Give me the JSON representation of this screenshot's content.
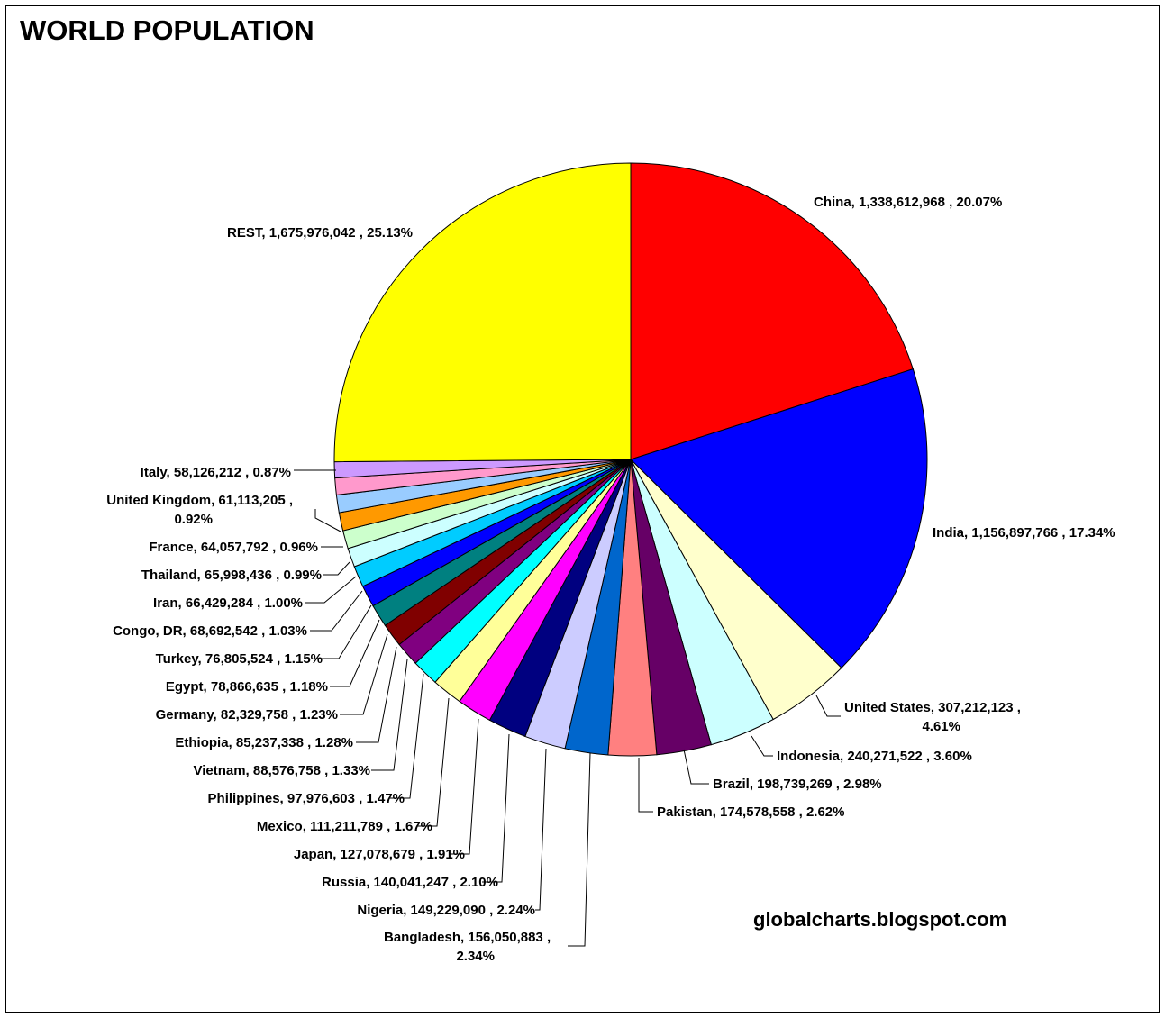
{
  "chart_data": {
    "type": "pie",
    "title": "WORLD POPULATION",
    "start_angle_deg": 0,
    "direction": "clockwise",
    "slices": [
      {
        "name": "China",
        "value": 1338612968,
        "percent": "20.07%",
        "color": "#ff0000"
      },
      {
        "name": "India",
        "value": 1156897766,
        "percent": "17.34%",
        "color": "#0000ff"
      },
      {
        "name": "United States",
        "value": 307212123,
        "percent": "4.61%",
        "color": "#ffffcc"
      },
      {
        "name": "Indonesia",
        "value": 240271522,
        "percent": "3.60%",
        "color": "#ccffff"
      },
      {
        "name": "Brazil",
        "value": 198739269,
        "percent": "2.98%",
        "color": "#660066"
      },
      {
        "name": "Pakistan",
        "value": 174578558,
        "percent": "2.62%",
        "color": "#ff8080"
      },
      {
        "name": "Bangladesh",
        "value": 156050883,
        "percent": "2.34%",
        "color": "#0066cc"
      },
      {
        "name": "Nigeria",
        "value": 149229090,
        "percent": "2.24%",
        "color": "#ccccff"
      },
      {
        "name": "Russia",
        "value": 140041247,
        "percent": "2.10%",
        "color": "#000080"
      },
      {
        "name": "Japan",
        "value": 127078679,
        "percent": "1.91%",
        "color": "#ff00ff"
      },
      {
        "name": "Mexico",
        "value": 111211789,
        "percent": "1.67%",
        "color": "#ffff99"
      },
      {
        "name": "Philippines",
        "value": 97976603,
        "percent": "1.47%",
        "color": "#00ffff"
      },
      {
        "name": "Vietnam",
        "value": 88576758,
        "percent": "1.33%",
        "color": "#800080"
      },
      {
        "name": "Ethiopia",
        "value": 85237338,
        "percent": "1.28%",
        "color": "#800000"
      },
      {
        "name": "Germany",
        "value": 82329758,
        "percent": "1.23%",
        "color": "#008080"
      },
      {
        "name": "Egypt",
        "value": 78866635,
        "percent": "1.18%",
        "color": "#0000ff"
      },
      {
        "name": "Turkey",
        "value": 76805524,
        "percent": "1.15%",
        "color": "#00ccff"
      },
      {
        "name": "Congo, DR",
        "value": 68692542,
        "percent": "1.03%",
        "color": "#ccffff"
      },
      {
        "name": "Iran",
        "value": 66429284,
        "percent": "1.00%",
        "color": "#ccffcc"
      },
      {
        "name": "Thailand",
        "value": 65998436,
        "percent": "0.99%",
        "color": "#ff9900"
      },
      {
        "name": "France",
        "value": 64057792,
        "percent": "0.96%",
        "color": "#99ccff"
      },
      {
        "name": "United Kingdom",
        "value": 61113205,
        "percent": "0.92%",
        "color": "#ff99cc"
      },
      {
        "name": "Italy",
        "value": 58126212,
        "percent": "0.87%",
        "color": "#cc99ff"
      },
      {
        "name": "REST",
        "value": 1675976042,
        "percent": "25.13%",
        "color": "#ffff00"
      }
    ],
    "labels": [
      {
        "lines": [
          "China,  1,338,612,968 , 20.07%"
        ]
      },
      {
        "lines": [
          "India,  1,156,897,766 , 17.34%"
        ]
      },
      {
        "lines": [
          "United States,  307,212,123 ,",
          "4.61%"
        ]
      },
      {
        "lines": [
          "Indonesia,  240,271,522 , 3.60%"
        ]
      },
      {
        "lines": [
          "Brazil,  198,739,269 , 2.98%"
        ]
      },
      {
        "lines": [
          "Pakistan,  174,578,558 , 2.62%"
        ]
      },
      {
        "lines": [
          "Bangladesh,  156,050,883 ,",
          "2.34%"
        ]
      },
      {
        "lines": [
          "Nigeria,  149,229,090 , 2.24%"
        ]
      },
      {
        "lines": [
          "Russia,  140,041,247 , 2.10%"
        ]
      },
      {
        "lines": [
          "Japan,  127,078,679 , 1.91%"
        ]
      },
      {
        "lines": [
          "Mexico,  111,211,789 , 1.67%"
        ]
      },
      {
        "lines": [
          "Philippines,  97,976,603 , 1.47%"
        ]
      },
      {
        "lines": [
          "Vietnam,  88,576,758 , 1.33%"
        ]
      },
      {
        "lines": [
          "Ethiopia,  85,237,338 , 1.28%"
        ]
      },
      {
        "lines": [
          "Germany,  82,329,758 , 1.23%"
        ]
      },
      {
        "lines": [
          "Egypt,  78,866,635 , 1.18%"
        ]
      },
      {
        "lines": [
          "Turkey,  76,805,524 , 1.15%"
        ]
      },
      {
        "lines": [
          "Congo, DR,  68,692,542 , 1.03%"
        ]
      },
      {
        "lines": [
          "Iran,  66,429,284 , 1.00%"
        ]
      },
      {
        "lines": [
          "Thailand,  65,998,436 , 0.99%"
        ]
      },
      {
        "lines": [
          "France,  64,057,792 , 0.96%"
        ]
      },
      {
        "lines": [
          "United Kingdom,  61,113,205 ,",
          "0.92%"
        ]
      },
      {
        "lines": [
          "Italy,  58,126,212 , 0.87%"
        ]
      },
      {
        "lines": [
          "REST,  1,675,976,042 , 25.13%"
        ]
      }
    ],
    "watermark": "globalcharts.blogspot.com"
  }
}
